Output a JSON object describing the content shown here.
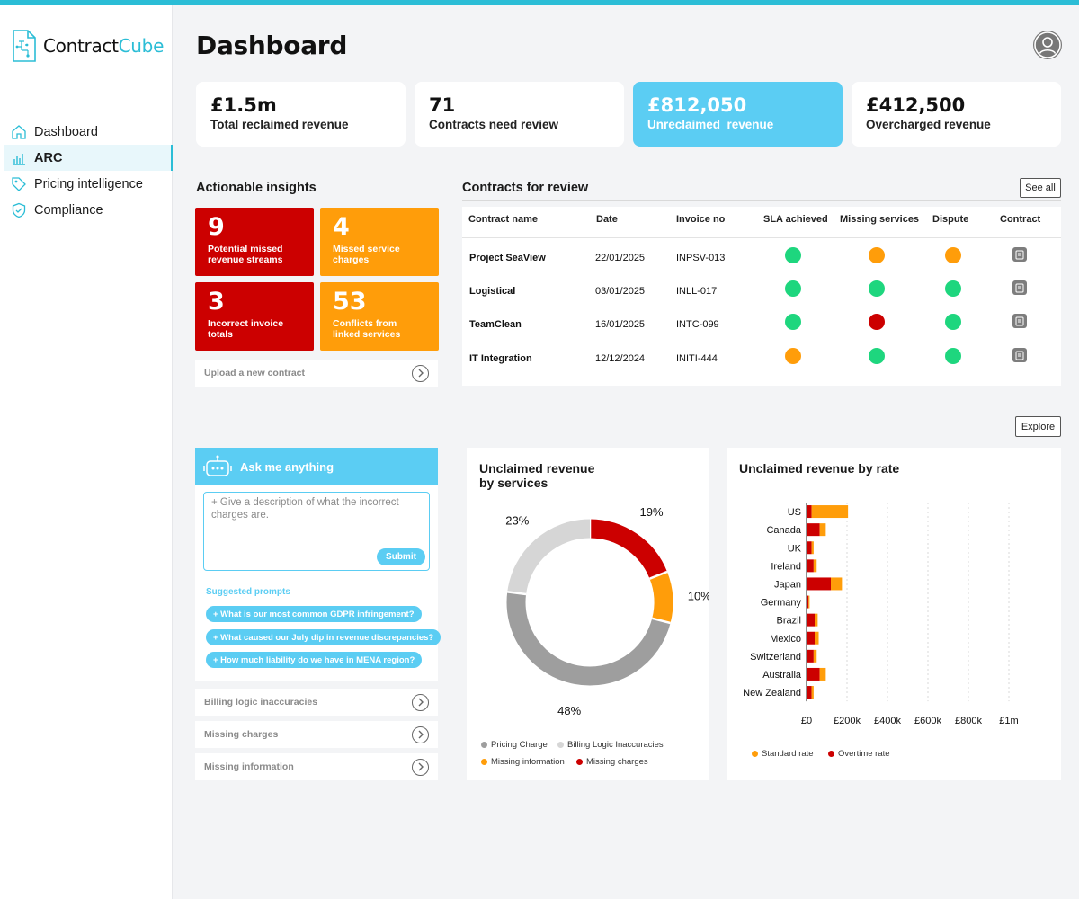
{
  "app": {
    "logo_word1": "Contract",
    "logo_word2": "Cube",
    "page_title": "Dashboard"
  },
  "nav": {
    "items": [
      {
        "label": "Dashboard",
        "icon": "home-icon"
      },
      {
        "label": "ARC",
        "icon": "chart-icon",
        "active": true
      },
      {
        "label": "Pricing intelligence",
        "icon": "tag-icon"
      },
      {
        "label": "Compliance",
        "icon": "shield-icon"
      }
    ]
  },
  "kpis": [
    {
      "value": "£1.5m",
      "label": "Total reclaimed revenue"
    },
    {
      "value": "71",
      "label": "Contracts need review"
    },
    {
      "value": "£812,050",
      "label": "Unreclaimed  revenue"
    },
    {
      "value": "£412,500",
      "label": "Overcharged revenue"
    }
  ],
  "insights": {
    "title": "Actionable insights",
    "tiles": [
      {
        "num": "9",
        "text": "Potential missed revenue streams"
      },
      {
        "num": "4",
        "text": "Missed service charges"
      },
      {
        "num": "3",
        "text": "Incorrect invoice totals"
      },
      {
        "num": "53",
        "text": "Conflicts from linked services"
      }
    ],
    "upload_label": "Upload a new contract"
  },
  "review": {
    "title": "Contracts for review",
    "see_all": "See all",
    "headers": [
      "Contract name",
      "Date",
      "Invoice no",
      "SLA achieved",
      "Missing services",
      "Dispute",
      "Contract"
    ],
    "rows": [
      {
        "name": "Project SeaView",
        "date": "22/01/2025",
        "invoice": "INPSV-013",
        "sla": "#1ed67e",
        "missing": "#ff9d0a",
        "dispute": "#ff9d0a"
      },
      {
        "name": "Logistical",
        "date": "03/01/2025",
        "invoice": "INLL-017",
        "sla": "#1ed67e",
        "missing": "#1ed67e",
        "dispute": "#1ed67e"
      },
      {
        "name": "TeamClean",
        "date": "16/01/2025",
        "invoice": "INTC-099",
        "sla": "#1ed67e",
        "missing": "#cc0000",
        "dispute": "#1ed67e"
      },
      {
        "name": "IT Integration",
        "date": "12/12/2024",
        "invoice": "INITI-444",
        "sla": "#ff9d0a",
        "missing": "#1ed67e",
        "dispute": "#1ed67e"
      }
    ]
  },
  "explore": "Explore",
  "chat": {
    "title": "Ask me anything",
    "placeholder": "+ Give a description of what the incorrect charges are.",
    "submit": "Submit",
    "suggested_title": "Suggested prompts",
    "prompts": [
      "+ What is our most common GDPR infringement?",
      "+ What caused our July dip in revenue discrepancies?",
      "+ How much liability do we have in MENA region?"
    ]
  },
  "lower_rows": [
    "Billing logic inaccuracies",
    "Missing charges",
    "Missing information"
  ],
  "colors": {
    "accent": "#2bbdd6",
    "highlight": "#5bcdf3",
    "red": "#cc0000",
    "orange": "#ff9d0a",
    "green": "#1ed67e",
    "grey": "#9e9e9e",
    "lightgrey": "#d6d6d6"
  },
  "chart_data": [
    {
      "type": "pie",
      "title_line1": "Unclaimed revenue",
      "title_line2": "by services",
      "slices": [
        {
          "name": "Missing charges",
          "value": 19,
          "label": "19%",
          "color": "#cc0000"
        },
        {
          "name": "Missing information",
          "value": 10,
          "label": "10%",
          "color": "#ff9d0a"
        },
        {
          "name": "Pricing Charge",
          "value": 48,
          "label": "48%",
          "color": "#9e9e9e"
        },
        {
          "name": "Billing Logic Inaccuracies",
          "value": 23,
          "label": "23%",
          "color": "#d6d6d6"
        }
      ],
      "legend": [
        {
          "name": "Pricing Charge",
          "color": "#9e9e9e"
        },
        {
          "name": "Billing Logic Inaccuracies",
          "color": "#d6d6d6"
        },
        {
          "name": "Missing information",
          "color": "#ff9d0a"
        },
        {
          "name": "Missing charges",
          "color": "#cc0000"
        }
      ]
    },
    {
      "type": "bar",
      "orientation": "horizontal",
      "stacked": true,
      "title": "Unclaimed revenue by rate",
      "categories": [
        "US",
        "Canada",
        "UK",
        "Ireland",
        "Japan",
        "Germany",
        "Brazil",
        "Mexico",
        "Switzerland",
        "Australia",
        "New Zealand"
      ],
      "series": [
        {
          "name": "Overtime rate",
          "color": "#cc0000",
          "values": [
            25000,
            65000,
            25000,
            35000,
            120000,
            10000,
            40000,
            40000,
            35000,
            65000,
            25000
          ]
        },
        {
          "name": "Standard rate",
          "color": "#ff9d0a",
          "values": [
            180000,
            30000,
            10000,
            15000,
            55000,
            5000,
            15000,
            20000,
            15000,
            30000,
            10000
          ]
        }
      ],
      "xticks": [
        "£0",
        "£200k",
        "£400k",
        "£600k",
        "£800k",
        "£1m"
      ],
      "xlim": [
        0,
        1000000
      ],
      "legend": [
        {
          "name": "Standard rate",
          "color": "#ff9d0a"
        },
        {
          "name": "Overtime rate",
          "color": "#cc0000"
        }
      ]
    }
  ]
}
